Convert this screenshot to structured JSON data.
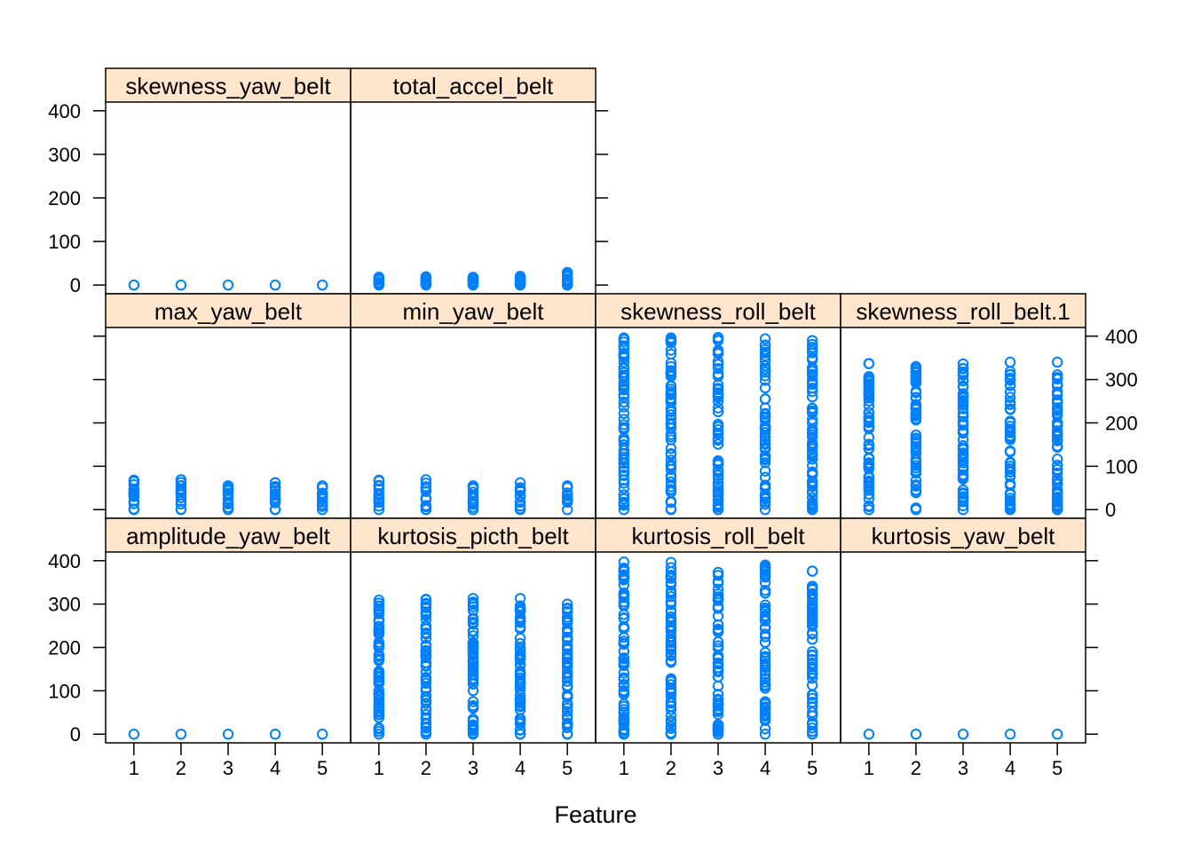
{
  "chart_data": {
    "type": "scatter",
    "layout": "lattice strip plot (xyplot), 3 rows by 4 columns",
    "xlabel": "Feature",
    "ylabel": "",
    "x_ticks": [
      "1",
      "2",
      "3",
      "4",
      "5"
    ],
    "y_ticks": [
      "0",
      "100",
      "200",
      "300",
      "400"
    ],
    "xlim": [
      0.4,
      5.6
    ],
    "ylim": [
      -20,
      420
    ],
    "grid": false,
    "point_color": "#0080ff",
    "strip_color": "#ffe5cc",
    "panels": [
      {
        "row": 1,
        "col": 1,
        "title": "skewness_yaw_belt",
        "pattern": "constant",
        "values": [
          0
        ]
      },
      {
        "row": 1,
        "col": 2,
        "title": "total_accel_belt",
        "pattern": "dense",
        "ranges": [
          [
            0,
            18
          ],
          [
            0,
            19
          ],
          [
            0,
            18
          ],
          [
            0,
            20
          ],
          [
            0,
            29
          ]
        ]
      },
      {
        "row": 2,
        "col": 1,
        "title": "max_yaw_belt",
        "pattern": "dense",
        "ranges": [
          [
            0,
            68
          ],
          [
            0,
            69
          ],
          [
            0,
            55
          ],
          [
            0,
            62
          ],
          [
            0,
            55
          ]
        ]
      },
      {
        "row": 2,
        "col": 2,
        "title": "min_yaw_belt",
        "pattern": "dense",
        "ranges": [
          [
            0,
            68
          ],
          [
            0,
            69
          ],
          [
            0,
            55
          ],
          [
            0,
            62
          ],
          [
            0,
            55
          ]
        ]
      },
      {
        "row": 2,
        "col": 3,
        "title": "skewness_roll_belt",
        "pattern": "spread",
        "ranges": [
          [
            0,
            396
          ],
          [
            0,
            396
          ],
          [
            0,
            397
          ],
          [
            0,
            394
          ],
          [
            0,
            390
          ]
        ]
      },
      {
        "row": 2,
        "col": 4,
        "title": "skewness_roll_belt.1",
        "pattern": "spread",
        "ranges": [
          [
            0,
            337
          ],
          [
            0,
            330
          ],
          [
            0,
            336
          ],
          [
            0,
            340
          ],
          [
            0,
            340
          ]
        ]
      },
      {
        "row": 3,
        "col": 1,
        "title": "amplitude_yaw_belt",
        "pattern": "constant",
        "values": [
          0
        ]
      },
      {
        "row": 3,
        "col": 2,
        "title": "kurtosis_picth_belt",
        "pattern": "spread",
        "ranges": [
          [
            0,
            309
          ],
          [
            0,
            311
          ],
          [
            0,
            313
          ],
          [
            0,
            313
          ],
          [
            0,
            300
          ]
        ]
      },
      {
        "row": 3,
        "col": 3,
        "title": "kurtosis_roll_belt",
        "pattern": "spread",
        "ranges": [
          [
            0,
            397
          ],
          [
            0,
            396
          ],
          [
            0,
            373
          ],
          [
            0,
            390
          ],
          [
            0,
            376
          ]
        ]
      },
      {
        "row": 3,
        "col": 4,
        "title": "kurtosis_yaw_belt",
        "pattern": "constant",
        "values": [
          0
        ]
      }
    ]
  }
}
